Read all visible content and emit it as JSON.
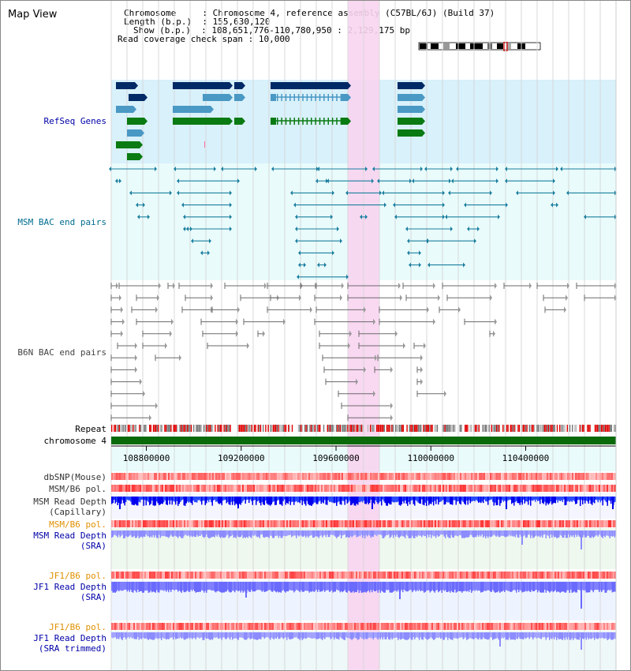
{
  "title": "Map View",
  "info": {
    "chromosome_key": "Chromosome     ",
    "chromosome_val": "Chromosome 4, reference assembly (C57BL/6J) (Build 37)",
    "length_key": "Length (b.p.)",
    "length_val": "155,630,120",
    "show_key": "Show (b.p.)",
    "show_val": "108,651,776-110,780,950 : 2,129,175 bp",
    "coverage_key": "Read coverage check span",
    "coverage_val": "10,000"
  },
  "tracks": {
    "refseq": "RefSeq Genes",
    "msm_bac": "MSM BAC end pairs",
    "b6n_bac": "B6N BAC end pairs",
    "repeat": "Repeat",
    "chromosome": "chromosome 4",
    "dbsnp": "dbSNP(Mouse)",
    "msm_b6_pol_1": "MSM/B6 pol.",
    "msm_depth_cap_1": "MSM Read Depth",
    "msm_depth_cap_2": "(Capillary)",
    "msm_b6_pol_2": "MSM/B6 pol.",
    "msm_depth_sra_1": "MSM Read Depth",
    "msm_depth_sra_2": "(SRA)",
    "jf1_b6_pol_1": "JF1/B6 pol.",
    "jf1_depth_sra_1": "JF1 Read Depth",
    "jf1_depth_sra_2": "(SRA)",
    "jf1_b6_pol_2": "JF1/B6 pol.",
    "jf1_depth_trim_1": "JF1 Read Depth",
    "jf1_depth_trim_2": "(SRA trimmed)"
  },
  "axis_ticks": [
    "108800000",
    "109200000",
    "109600000",
    "110000000",
    "110400000"
  ],
  "colors": {
    "refseq_bg": "#d8f1fb",
    "bac_bg": "#e9fbfb",
    "highlight": "#f8d4f0",
    "dark_blue": "#002a66",
    "mid_blue": "#4a98c4",
    "green": "#0a7a12",
    "teal_line": "#1a7f9f",
    "gray_line": "#6a6a6a",
    "depth_blue": "#1a1aff",
    "depth_light": "#8080ff",
    "pol_red": "#ff6060"
  }
}
